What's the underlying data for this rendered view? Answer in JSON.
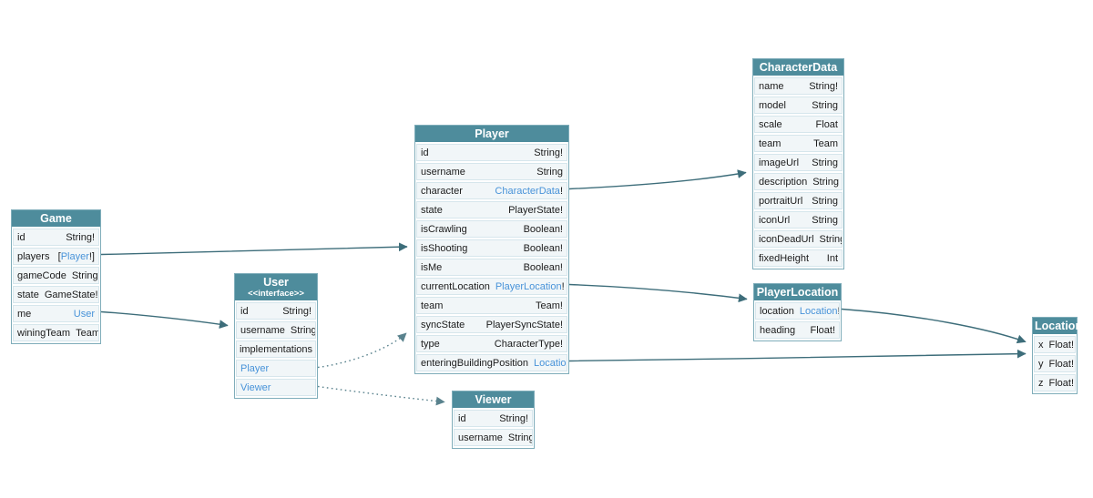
{
  "colors": {
    "canvas_bg": "#ffffff",
    "header_bg": "#4e8c9c",
    "header_text": "#ffffff",
    "row_bg": "#f1f6f8",
    "row_border": "#d6e6ec",
    "table_border": "#7fadba",
    "text": "#1b1b1b",
    "link": "#4893d9",
    "edge": "#3d6d7a"
  },
  "entities": [
    {
      "name": "Game",
      "fields": [
        {
          "name": "id",
          "type_segments": [
            {
              "text": "String!",
              "link": false
            }
          ]
        },
        {
          "name": "players",
          "type_segments": [
            {
              "text": "[",
              "link": false
            },
            {
              "text": "Player",
              "link": true
            },
            {
              "text": "!]",
              "link": false
            }
          ]
        },
        {
          "name": "gameCode",
          "type_segments": [
            {
              "text": "String!",
              "link": false
            }
          ]
        },
        {
          "name": "state",
          "type_segments": [
            {
              "text": "GameState!",
              "link": false
            }
          ]
        },
        {
          "name": "me",
          "type_segments": [
            {
              "text": "User",
              "link": true
            }
          ]
        },
        {
          "name": "winingTeam",
          "type_segments": [
            {
              "text": "Team",
              "link": false
            }
          ]
        }
      ]
    },
    {
      "name": "User",
      "stereotype": "<<interface>>",
      "fields": [
        {
          "name": "id",
          "type_segments": [
            {
              "text": "String!",
              "link": false
            }
          ]
        },
        {
          "name": "username",
          "type_segments": [
            {
              "text": "String",
              "link": false
            }
          ]
        },
        {
          "name": "implementations",
          "kind": "section",
          "type_segments": []
        },
        {
          "name": "Player",
          "kind": "impl-link",
          "type_segments": []
        },
        {
          "name": "Viewer",
          "kind": "impl-link",
          "type_segments": []
        }
      ]
    },
    {
      "name": "Player",
      "fields": [
        {
          "name": "id",
          "type_segments": [
            {
              "text": "String!",
              "link": false
            }
          ]
        },
        {
          "name": "username",
          "type_segments": [
            {
              "text": "String",
              "link": false
            }
          ]
        },
        {
          "name": "character",
          "type_segments": [
            {
              "text": "CharacterData",
              "link": true
            },
            {
              "text": "!",
              "link": false
            }
          ]
        },
        {
          "name": "state",
          "type_segments": [
            {
              "text": "PlayerState!",
              "link": false
            }
          ]
        },
        {
          "name": "isCrawling",
          "type_segments": [
            {
              "text": "Boolean!",
              "link": false
            }
          ]
        },
        {
          "name": "isShooting",
          "type_segments": [
            {
              "text": "Boolean!",
              "link": false
            }
          ]
        },
        {
          "name": "isMe",
          "type_segments": [
            {
              "text": "Boolean!",
              "link": false
            }
          ]
        },
        {
          "name": "currentLocation",
          "type_segments": [
            {
              "text": "PlayerLocation",
              "link": true
            },
            {
              "text": "!",
              "link": false
            }
          ]
        },
        {
          "name": "team",
          "type_segments": [
            {
              "text": "Team!",
              "link": false
            }
          ]
        },
        {
          "name": "syncState",
          "type_segments": [
            {
              "text": "PlayerSyncState!",
              "link": false
            }
          ]
        },
        {
          "name": "type",
          "type_segments": [
            {
              "text": "CharacterType!",
              "link": false
            }
          ]
        },
        {
          "name": "enteringBuildingPosition",
          "type_segments": [
            {
              "text": "Location",
              "link": true
            }
          ]
        }
      ]
    },
    {
      "name": "Viewer",
      "fields": [
        {
          "name": "id",
          "type_segments": [
            {
              "text": "String!",
              "link": false
            }
          ]
        },
        {
          "name": "username",
          "type_segments": [
            {
              "text": "String",
              "link": false
            }
          ]
        }
      ]
    },
    {
      "name": "CharacterData",
      "fields": [
        {
          "name": "name",
          "type_segments": [
            {
              "text": "String!",
              "link": false
            }
          ]
        },
        {
          "name": "model",
          "type_segments": [
            {
              "text": "String",
              "link": false
            }
          ]
        },
        {
          "name": "scale",
          "type_segments": [
            {
              "text": "Float",
              "link": false
            }
          ]
        },
        {
          "name": "team",
          "type_segments": [
            {
              "text": "Team",
              "link": false
            }
          ]
        },
        {
          "name": "imageUrl",
          "type_segments": [
            {
              "text": "String",
              "link": false
            }
          ]
        },
        {
          "name": "description",
          "type_segments": [
            {
              "text": "String",
              "link": false
            }
          ]
        },
        {
          "name": "portraitUrl",
          "type_segments": [
            {
              "text": "String",
              "link": false
            }
          ]
        },
        {
          "name": "iconUrl",
          "type_segments": [
            {
              "text": "String",
              "link": false
            }
          ]
        },
        {
          "name": "iconDeadUrl",
          "type_segments": [
            {
              "text": "String",
              "link": false
            }
          ]
        },
        {
          "name": "fixedHeight",
          "type_segments": [
            {
              "text": "Int",
              "link": false
            }
          ]
        }
      ]
    },
    {
      "name": "PlayerLocation",
      "fields": [
        {
          "name": "location",
          "type_segments": [
            {
              "text": "Location",
              "link": true
            },
            {
              "text": "!",
              "link": false
            }
          ]
        },
        {
          "name": "heading",
          "type_segments": [
            {
              "text": "Float!",
              "link": false
            }
          ]
        }
      ]
    },
    {
      "name": "Location",
      "fields": [
        {
          "name": "x",
          "type_segments": [
            {
              "text": "Float!",
              "link": false
            }
          ]
        },
        {
          "name": "y",
          "type_segments": [
            {
              "text": "Float!",
              "link": false
            }
          ]
        },
        {
          "name": "z",
          "type_segments": [
            {
              "text": "Float!",
              "link": false
            }
          ]
        }
      ]
    }
  ],
  "edges": [
    {
      "from": "Game.players",
      "to": "Player",
      "style": "solid"
    },
    {
      "from": "Game.me",
      "to": "User",
      "style": "solid"
    },
    {
      "from": "User.Player",
      "to": "Player",
      "style": "dotted"
    },
    {
      "from": "User.Viewer",
      "to": "Viewer",
      "style": "dotted"
    },
    {
      "from": "Player.character",
      "to": "CharacterData",
      "style": "solid"
    },
    {
      "from": "Player.currentLocation",
      "to": "PlayerLocation",
      "style": "solid"
    },
    {
      "from": "Player.enteringBuildingPosition",
      "to": "Location",
      "style": "solid"
    },
    {
      "from": "PlayerLocation.location",
      "to": "Location",
      "style": "solid"
    }
  ]
}
